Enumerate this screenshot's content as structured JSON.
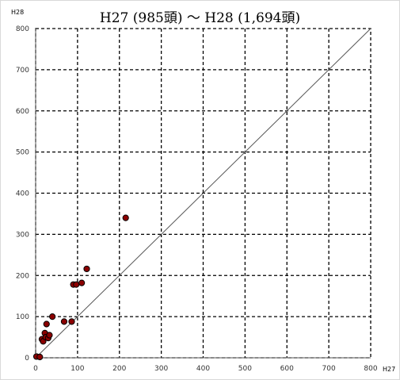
{
  "chart_data": {
    "type": "scatter",
    "title": "H27 (985頭) ～ H28 (1,694頭)",
    "xlabel": "H27",
    "ylabel": "H28",
    "xlim": [
      0,
      800
    ],
    "ylim": [
      0,
      800
    ],
    "xticks": [
      "0",
      "100",
      "200",
      "300",
      "400",
      "500",
      "600",
      "700",
      "800"
    ],
    "yticks": [
      "0",
      "100",
      "200",
      "300",
      "400",
      "500",
      "600",
      "700",
      "800"
    ],
    "grid": true,
    "reference_line": {
      "from": [
        0,
        0
      ],
      "to": [
        800,
        800
      ]
    },
    "marker_color": "#8b0000",
    "marker_edge": "#000000",
    "points": [
      {
        "x": 2,
        "y": 3
      },
      {
        "x": 10,
        "y": 2
      },
      {
        "x": 15,
        "y": 45
      },
      {
        "x": 18,
        "y": 40
      },
      {
        "x": 22,
        "y": 60
      },
      {
        "x": 24,
        "y": 50
      },
      {
        "x": 26,
        "y": 82
      },
      {
        "x": 30,
        "y": 48
      },
      {
        "x": 33,
        "y": 55
      },
      {
        "x": 40,
        "y": 100
      },
      {
        "x": 68,
        "y": 88
      },
      {
        "x": 86,
        "y": 88
      },
      {
        "x": 90,
        "y": 178
      },
      {
        "x": 97,
        "y": 178
      },
      {
        "x": 110,
        "y": 182
      },
      {
        "x": 122,
        "y": 216
      },
      {
        "x": 215,
        "y": 340
      }
    ]
  }
}
